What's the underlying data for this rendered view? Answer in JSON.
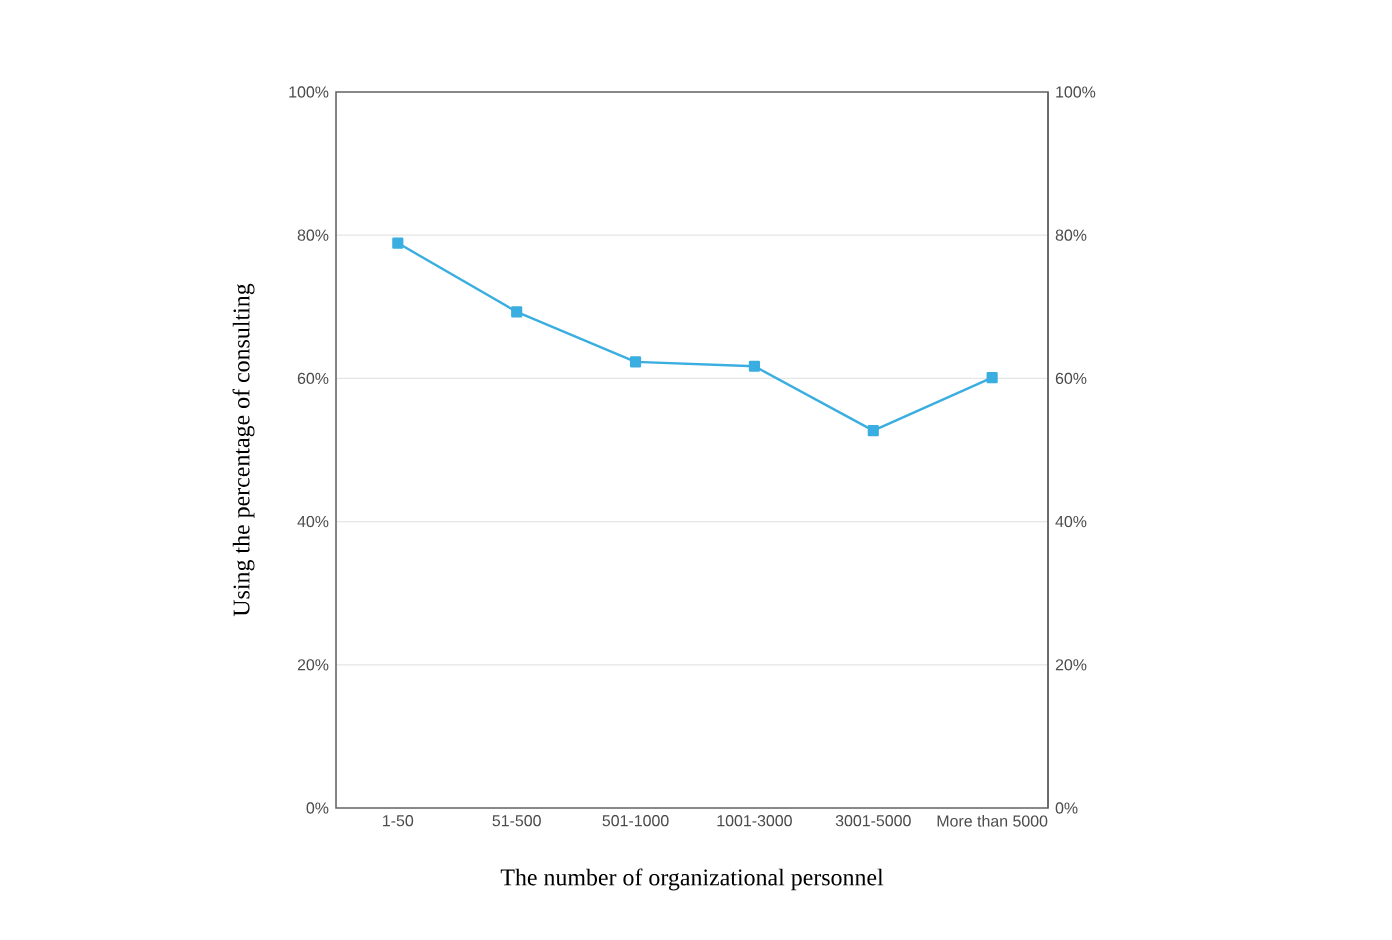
{
  "chart_data": {
    "type": "line",
    "xlabel": "The number of organizational personnel",
    "ylabel": "Using the percentage of consulting",
    "categories": [
      "1-50",
      "51-500",
      "501-1000",
      "1001-3000",
      "3001-5000",
      "More than 5000"
    ],
    "series": [
      {
        "color": "#3aaee0",
        "values": [
          78.9,
          69.3,
          62.3,
          61.7,
          52.7,
          60.1
        ]
      }
    ],
    "ylim": [
      0,
      100
    ],
    "yticks": [
      {
        "value": 0,
        "label": "0%"
      },
      {
        "value": 20,
        "label": "20%"
      },
      {
        "value": 40,
        "label": "40%"
      },
      {
        "value": 60,
        "label": "60%"
      },
      {
        "value": 80,
        "label": "80%"
      },
      {
        "value": 100,
        "label": "100%"
      }
    ],
    "y2lim": [
      0,
      100
    ],
    "y2ticks": [
      {
        "value": 0,
        "label": "0%"
      },
      {
        "value": 20,
        "label": "20%"
      },
      {
        "value": 40,
        "label": "40%"
      },
      {
        "value": 60,
        "label": "60%"
      },
      {
        "value": 80,
        "label": "80%"
      },
      {
        "value": 100,
        "label": "100%"
      }
    ],
    "grid": "y",
    "marker": "square",
    "line_style": "solid"
  }
}
